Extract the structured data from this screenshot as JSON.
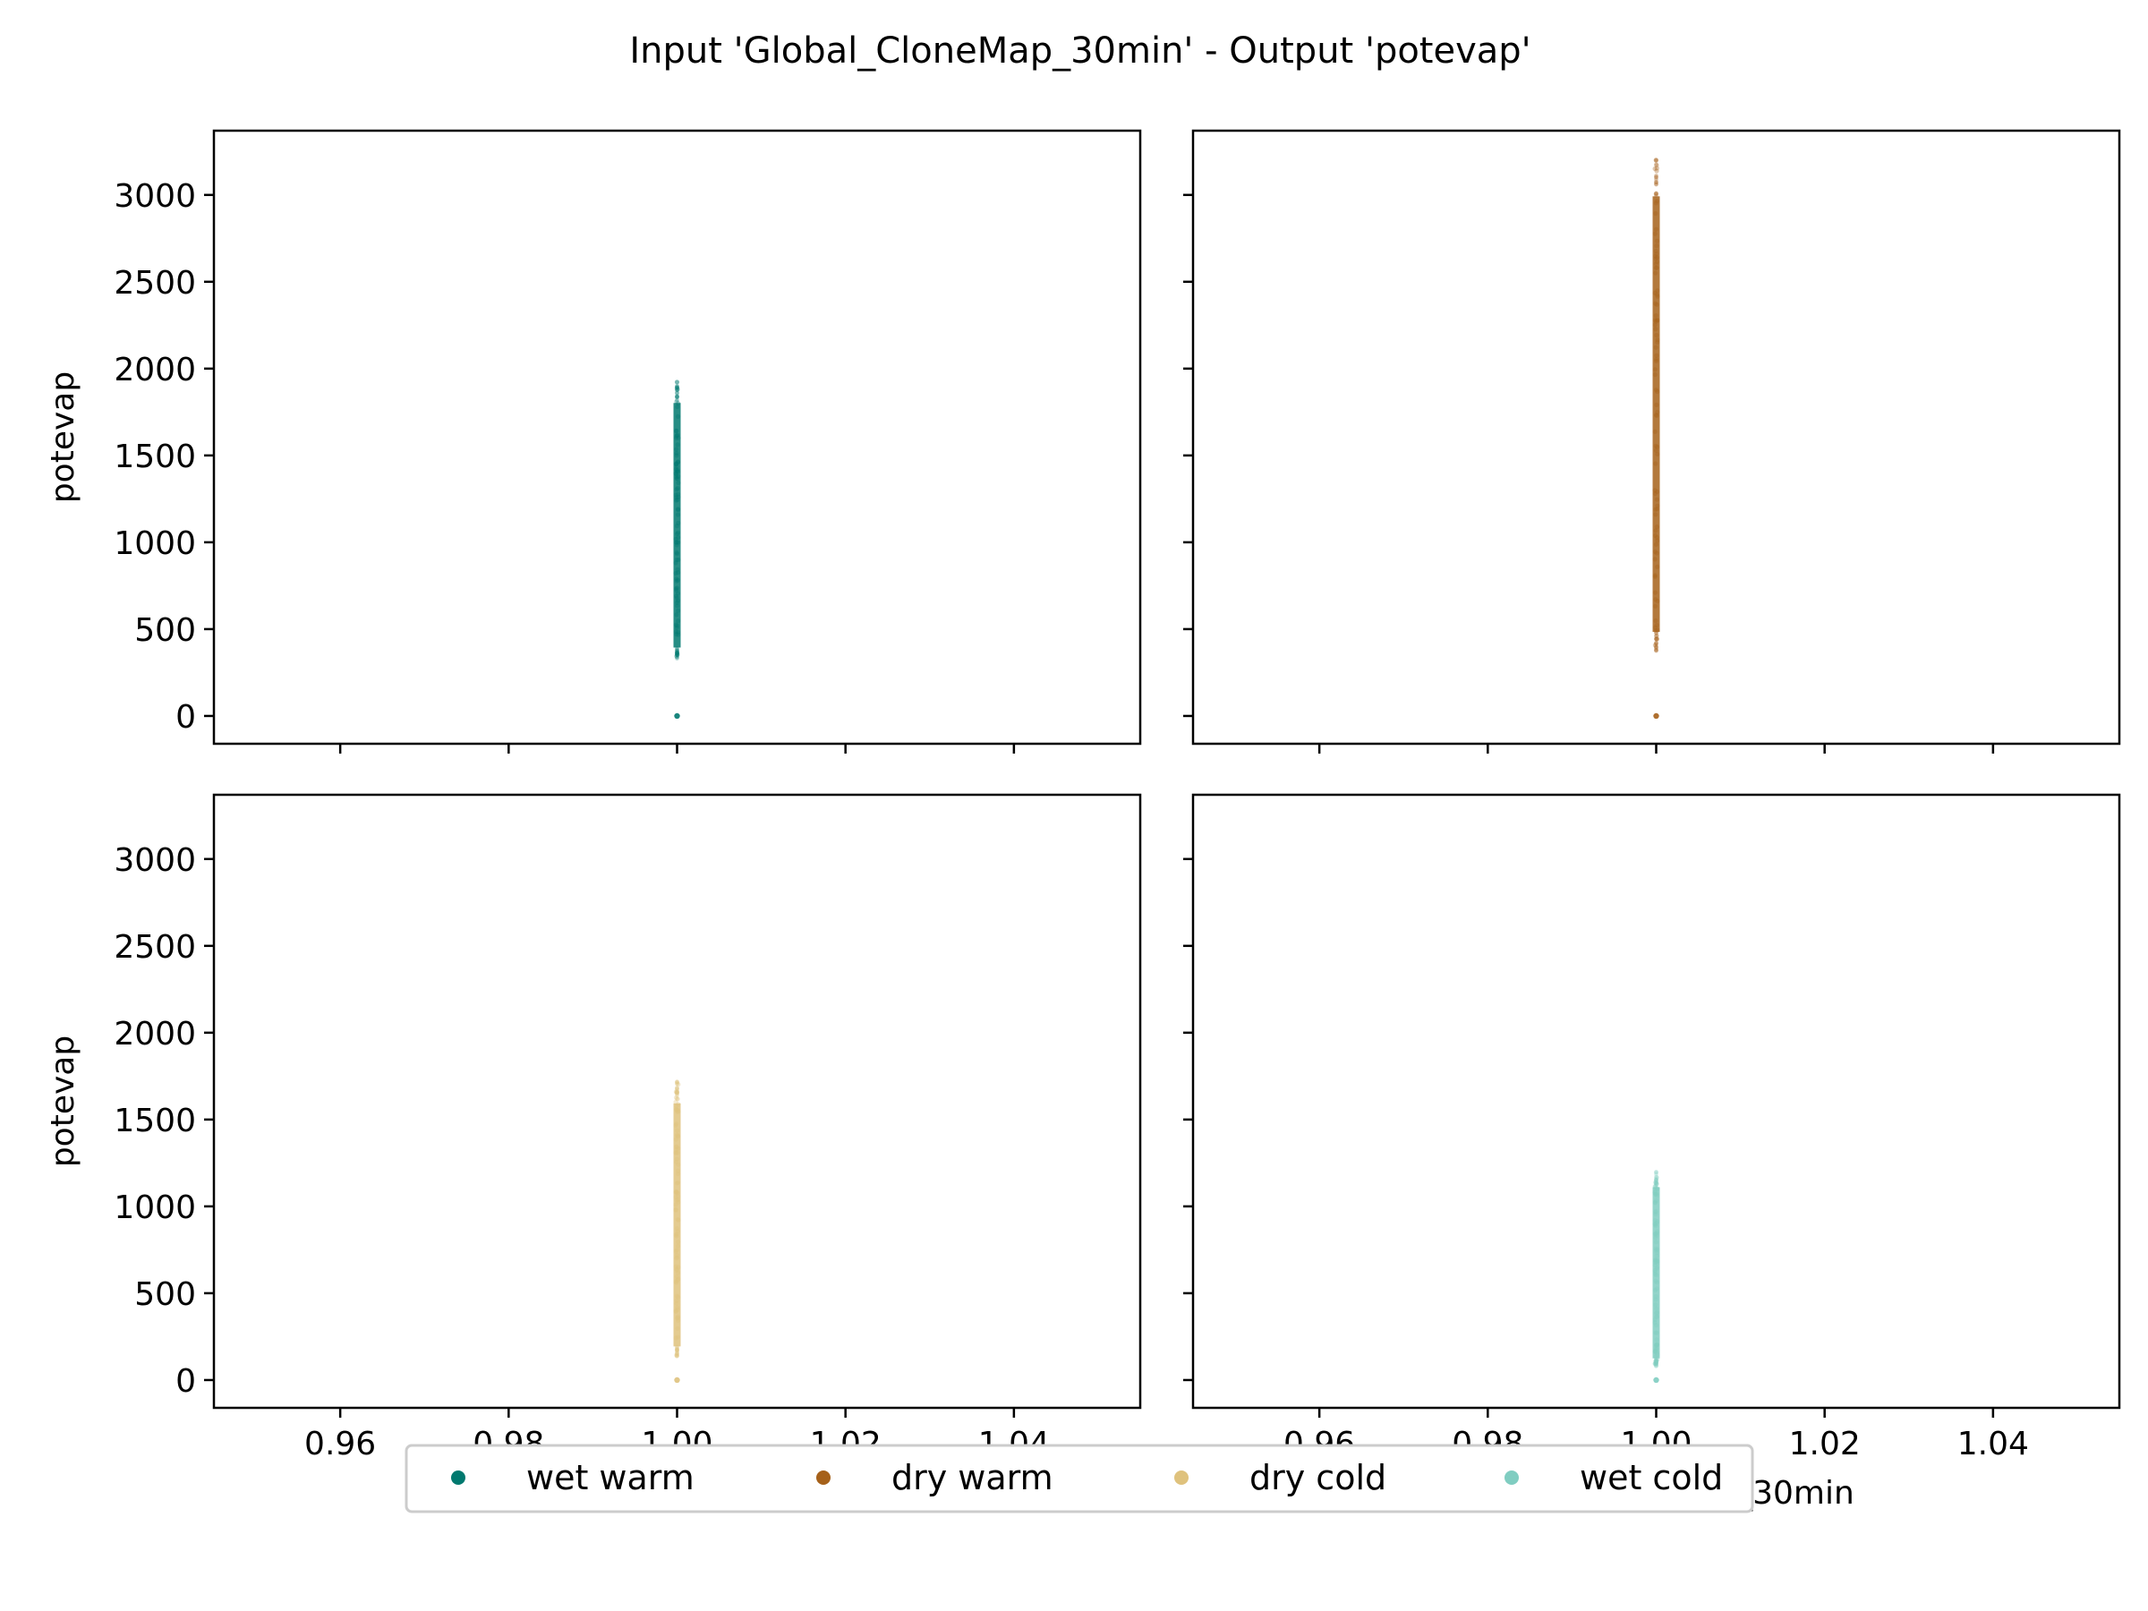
{
  "title": "Input 'Global_CloneMap_30min' - Output 'potevap'",
  "chart_data": [
    {
      "type": "scatter",
      "panel": "top-left",
      "series": [
        {
          "name": "wet warm",
          "color": "#01796f",
          "x": 1.0,
          "y_range": [
            330,
            1930
          ],
          "outliers_low": [
            0
          ]
        }
      ],
      "xlabel": "",
      "ylabel": "potevap",
      "xlim": [
        0.945,
        1.055
      ],
      "ylim": [
        -160,
        3370
      ],
      "x_ticks": [
        "0.96",
        "0.98",
        "1.00",
        "1.02",
        "1.04"
      ],
      "y_ticks": [
        "0",
        "500",
        "1000",
        "1500",
        "2000",
        "2500",
        "3000"
      ],
      "show_x_tick_labels": false,
      "show_y_tick_labels": true
    },
    {
      "type": "scatter",
      "panel": "top-right",
      "series": [
        {
          "name": "dry warm",
          "color": "#a6611a",
          "x": 1.0,
          "y_range": [
            370,
            3220
          ],
          "outliers_low": [
            0
          ]
        }
      ],
      "xlabel": "",
      "ylabel": "",
      "xlim": [
        0.945,
        1.055
      ],
      "ylim": [
        -160,
        3370
      ],
      "x_ticks": [
        "0.96",
        "0.98",
        "1.00",
        "1.02",
        "1.04"
      ],
      "y_ticks": [
        "0",
        "500",
        "1000",
        "1500",
        "2000",
        "2500",
        "3000"
      ],
      "show_x_tick_labels": false,
      "show_y_tick_labels": false
    },
    {
      "type": "scatter",
      "panel": "bottom-left",
      "series": [
        {
          "name": "dry cold",
          "color": "#dfc27d",
          "x": 1.0,
          "y_range": [
            130,
            1720
          ],
          "outliers_low": [
            0
          ]
        }
      ],
      "xlabel": "Global_CloneMap_30min",
      "ylabel": "potevap",
      "xlim": [
        0.945,
        1.055
      ],
      "ylim": [
        -160,
        3370
      ],
      "x_ticks": [
        "0.96",
        "0.98",
        "1.00",
        "1.02",
        "1.04"
      ],
      "y_ticks": [
        "0",
        "500",
        "1000",
        "1500",
        "2000",
        "2500",
        "3000"
      ],
      "show_x_tick_labels": true,
      "show_y_tick_labels": true
    },
    {
      "type": "scatter",
      "panel": "bottom-right",
      "series": [
        {
          "name": "wet cold",
          "color": "#80cdc1",
          "x": 1.0,
          "y_range": [
            80,
            1200
          ],
          "outliers_low": [
            0
          ]
        }
      ],
      "xlabel": "Global_CloneMap_30min",
      "ylabel": "",
      "xlim": [
        0.945,
        1.055
      ],
      "ylim": [
        -160,
        3370
      ],
      "x_ticks": [
        "0.96",
        "0.98",
        "1.00",
        "1.02",
        "1.04"
      ],
      "y_ticks": [
        "0",
        "500",
        "1000",
        "1500",
        "2000",
        "2500",
        "3000"
      ],
      "show_x_tick_labels": true,
      "show_y_tick_labels": false
    }
  ],
  "legend": {
    "placement": "bottom-center",
    "items": [
      {
        "label": "wet warm",
        "color": "#01796f"
      },
      {
        "label": "dry warm",
        "color": "#a6611a"
      },
      {
        "label": "dry cold",
        "color": "#dfc27d"
      },
      {
        "label": "wet cold",
        "color": "#80cdc1"
      }
    ]
  }
}
